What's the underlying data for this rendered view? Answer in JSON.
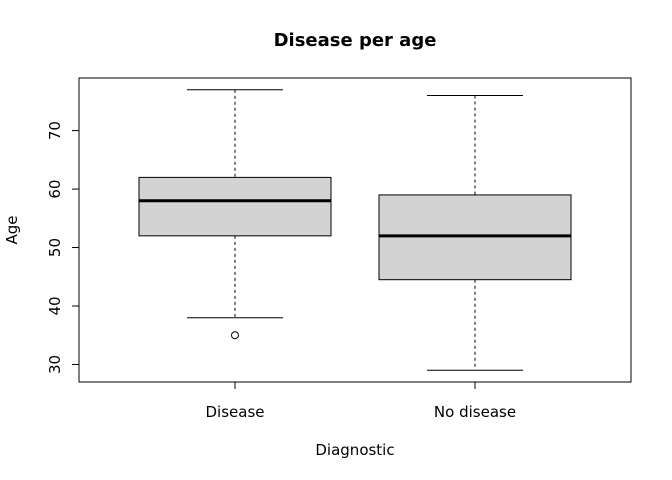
{
  "chart_data": {
    "type": "boxplot",
    "title": "Disease per age",
    "xlabel": "Diagnostic",
    "ylabel": "Age",
    "ylim": [
      27,
      79
    ],
    "yticks": [
      30,
      40,
      50,
      60,
      70
    ],
    "grid": false,
    "categories": [
      "Disease",
      "No disease"
    ],
    "boxes": [
      {
        "category": "Disease",
        "whisker_low": 38,
        "q1": 52,
        "median": 58,
        "q3": 62,
        "whisker_high": 77,
        "outliers": [
          35
        ]
      },
      {
        "category": "No disease",
        "whisker_low": 29,
        "q1": 44.5,
        "median": 52,
        "q3": 59,
        "whisker_high": 76,
        "outliers": []
      }
    ],
    "box_fill": "#d3d3d3",
    "stroke": "#000000"
  }
}
